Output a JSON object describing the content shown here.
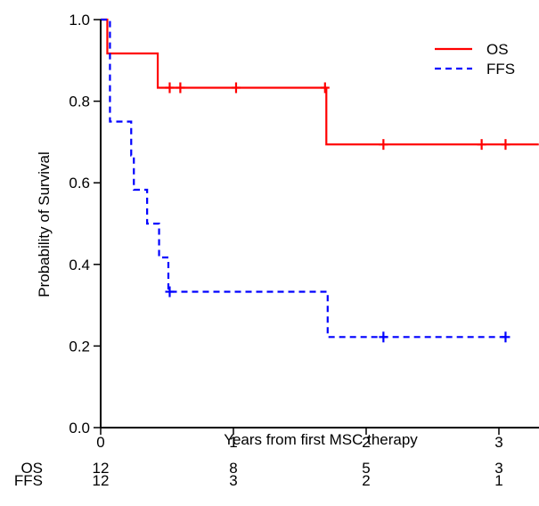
{
  "chart_data": {
    "type": "line",
    "subtype": "kaplan-meier",
    "xlabel": "Years from first MSC therapy",
    "ylabel": "Probability of Survival",
    "xlim": [
      0,
      3.3
    ],
    "ylim": [
      0,
      1.0
    ],
    "x_ticks": [
      0,
      1,
      2,
      3
    ],
    "y_ticks": [
      0.0,
      0.2,
      0.4,
      0.6,
      0.8,
      1.0
    ],
    "x_tick_labels": [
      "0",
      "1",
      "2",
      "3"
    ],
    "y_tick_labels": [
      "0.0",
      "0.2",
      "0.4",
      "0.6",
      "0.8",
      "1.0"
    ],
    "grid": false,
    "legend_position": "top-right",
    "series": [
      {
        "name": "OS",
        "color": "#ff0000",
        "line_style": "solid",
        "steps": [
          [
            0,
            1.0
          ],
          [
            0.05,
            0.917
          ],
          [
            0.43,
            0.833
          ],
          [
            1.7,
            0.694
          ],
          [
            3.3,
            0.694
          ]
        ],
        "censored": [
          [
            0.52,
            0.833
          ],
          [
            0.6,
            0.833
          ],
          [
            1.02,
            0.833
          ],
          [
            1.69,
            0.833
          ],
          [
            2.13,
            0.694
          ],
          [
            2.87,
            0.694
          ],
          [
            3.05,
            0.694
          ]
        ]
      },
      {
        "name": "FFS",
        "color": "#0000ff",
        "line_style": "dashed",
        "steps": [
          [
            0,
            1.0
          ],
          [
            0.07,
            0.75
          ],
          [
            0.23,
            0.667
          ],
          [
            0.25,
            0.583
          ],
          [
            0.35,
            0.5
          ],
          [
            0.44,
            0.417
          ],
          [
            0.51,
            0.333
          ],
          [
            1.71,
            0.222
          ],
          [
            3.05,
            0.222
          ]
        ],
        "censored": [
          [
            0.52,
            0.333
          ],
          [
            2.13,
            0.222
          ],
          [
            3.05,
            0.222
          ]
        ]
      }
    ],
    "risk_table": {
      "times": [
        0,
        1,
        2,
        3
      ],
      "rows": [
        {
          "label": "OS",
          "counts": [
            "12",
            "8",
            "5",
            "3"
          ]
        },
        {
          "label": "FFS",
          "counts": [
            "12",
            "3",
            "2",
            "1"
          ]
        }
      ]
    }
  }
}
